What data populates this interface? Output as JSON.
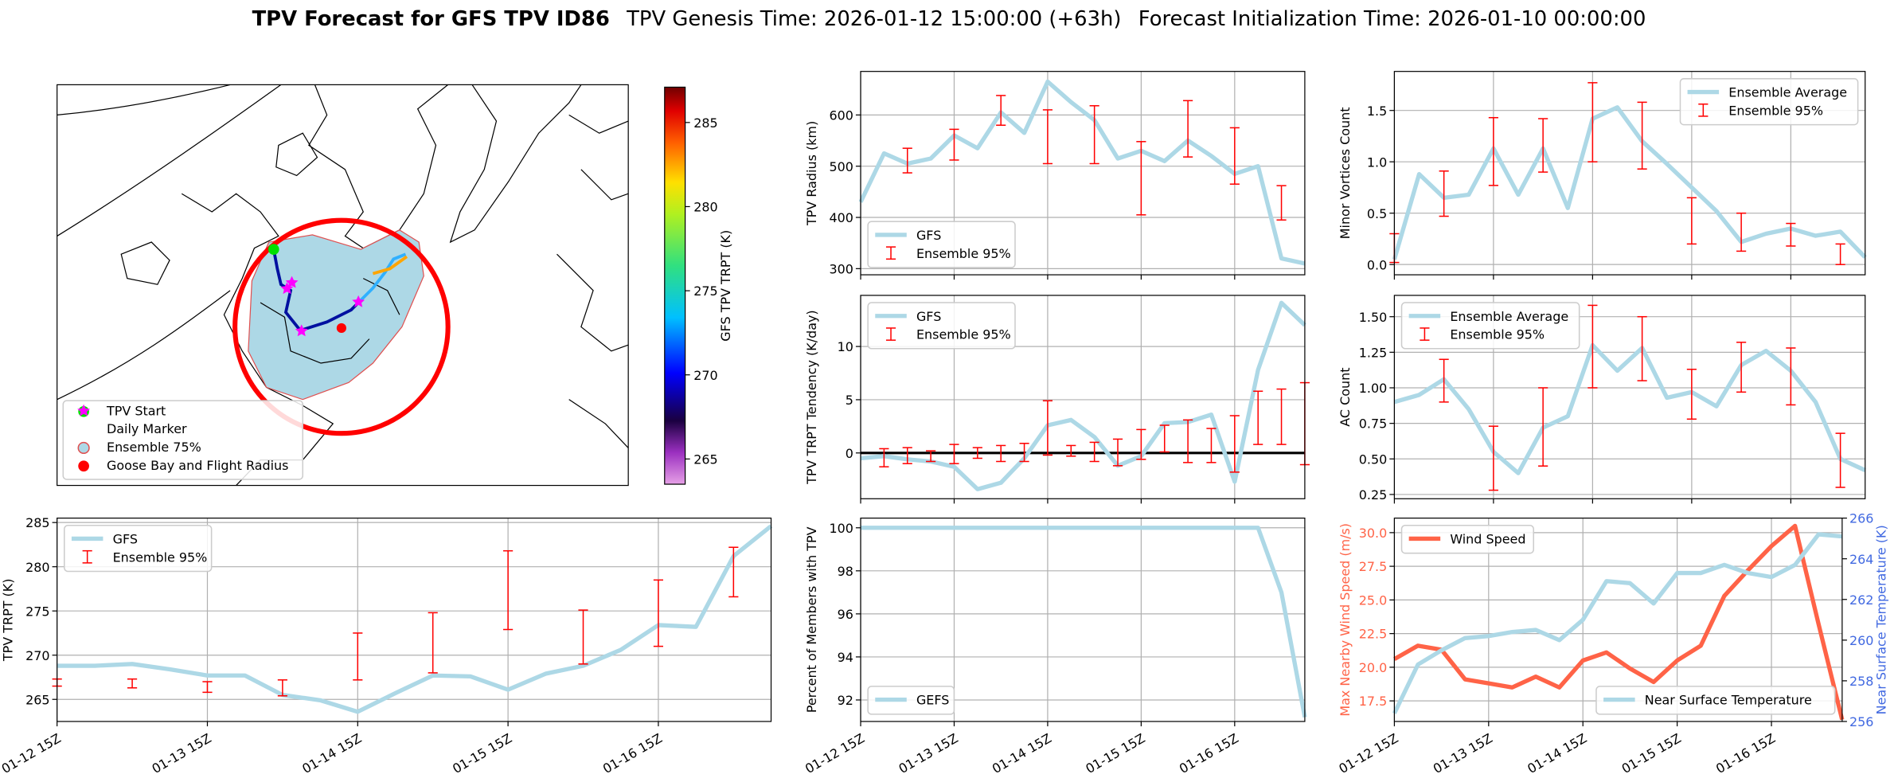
{
  "suptitle": [
    "TPV Forecast for GFS TPV ID86",
    "TPV Genesis Time: 2026-01-12 15:00:00 (+63h)",
    "Forecast Initialization Time: 2026-01-10 00:00:00"
  ],
  "chart_data": [
    {
      "type": "map",
      "legend": [
        "TPV Start",
        "Daily Marker",
        "Ensemble 75%",
        "Goose Bay and Flight Radius"
      ],
      "colorbar": {
        "label": "GFS TPV TRPT (K)",
        "lim": [
          263.5,
          287.1
        ],
        "ticks": [
          265,
          270,
          275,
          280,
          285
        ]
      }
    },
    {
      "type": "line",
      "ylabel": "TPV TRPT (K)",
      "grid": true,
      "legend_loc": "upper left",
      "x": [
        "01-12 15Z",
        "01-12 21Z",
        "01-13 03Z",
        "01-13 09Z",
        "01-13 15Z",
        "01-13 21Z",
        "01-14 03Z",
        "01-14 09Z",
        "01-14 15Z",
        "01-14 21Z",
        "01-15 03Z",
        "01-15 09Z",
        "01-15 15Z",
        "01-15 21Z",
        "01-16 03Z",
        "01-16 09Z",
        "01-16 15Z",
        "01-16 21Z",
        "01-17 03Z",
        "01-17 09Z"
      ],
      "xlim": [
        "01-12 15Z",
        "01-17 09Z"
      ],
      "xticks": [
        "01-12 15Z",
        "01-13 15Z",
        "01-14 15Z",
        "01-15 15Z",
        "01-16 15Z"
      ],
      "ylim": [
        262.5,
        285.5
      ],
      "yticks": [
        265,
        270,
        275,
        280,
        285
      ],
      "series": [
        {
          "name": "GFS",
          "color": "#add8e6",
          "values": [
            268.8,
            268.8,
            269.0,
            268.4,
            267.7,
            267.7,
            265.5,
            264.9,
            263.6,
            265.7,
            267.7,
            267.6,
            266.1,
            267.9,
            268.8,
            270.6,
            273.4,
            273.2,
            281.2,
            284.6
          ]
        }
      ],
      "errorbars": {
        "name": "Ensemble 95%",
        "color": "#ff0000",
        "x": [
          "01-12 15Z",
          "01-13 03Z",
          "01-13 15Z",
          "01-14 03Z",
          "01-14 15Z",
          "01-15 03Z",
          "01-15 15Z",
          "01-16 03Z",
          "01-16 15Z",
          "01-17 03Z"
        ],
        "low": [
          266.5,
          266.3,
          265.8,
          265.4,
          267.2,
          268.0,
          272.9,
          269.0,
          271.0,
          276.6
        ],
        "high": [
          267.3,
          267.3,
          267.0,
          267.2,
          272.5,
          274.8,
          281.8,
          275.1,
          278.5,
          282.2
        ]
      }
    },
    {
      "type": "line",
      "ylabel": "TPV Radius (km)",
      "grid": true,
      "legend_loc": "lower left",
      "x": [
        "01-12 15Z",
        "01-12 21Z",
        "01-13 03Z",
        "01-13 09Z",
        "01-13 15Z",
        "01-13 21Z",
        "01-14 03Z",
        "01-14 09Z",
        "01-14 15Z",
        "01-14 21Z",
        "01-15 03Z",
        "01-15 09Z",
        "01-15 15Z",
        "01-15 21Z",
        "01-16 03Z",
        "01-16 09Z",
        "01-16 15Z",
        "01-16 21Z",
        "01-17 03Z",
        "01-17 09Z"
      ],
      "xlim": [
        "01-12 15Z",
        "01-17 09Z"
      ],
      "ylim": [
        288,
        685
      ],
      "yticks": [
        300,
        400,
        500,
        600
      ],
      "series": [
        {
          "name": "GFS",
          "color": "#add8e6",
          "values": [
            430,
            525,
            505,
            515,
            560,
            535,
            605,
            565,
            665,
            625,
            590,
            515,
            530,
            510,
            550,
            520,
            485,
            500,
            320,
            310
          ]
        }
      ],
      "errorbars": {
        "name": "Ensemble 95%",
        "color": "#ff0000",
        "x": [
          "01-13 03Z",
          "01-13 15Z",
          "01-14 03Z",
          "01-14 15Z",
          "01-15 03Z",
          "01-15 15Z",
          "01-16 03Z",
          "01-16 15Z",
          "01-17 03Z"
        ],
        "low": [
          487,
          512,
          580,
          505,
          505,
          405,
          518,
          465,
          395
        ],
        "high": [
          535,
          572,
          638,
          610,
          618,
          548,
          628,
          575,
          462
        ]
      }
    },
    {
      "type": "line",
      "ylabel": "TPV TRPT Tendency (K/day)",
      "grid": true,
      "legend_loc": "upper left",
      "hline": 0,
      "x": [
        "01-12 15Z",
        "01-12 21Z",
        "01-13 03Z",
        "01-13 09Z",
        "01-13 15Z",
        "01-13 21Z",
        "01-14 03Z",
        "01-14 09Z",
        "01-14 15Z",
        "01-14 21Z",
        "01-15 03Z",
        "01-15 09Z",
        "01-15 15Z",
        "01-15 21Z",
        "01-16 03Z",
        "01-16 09Z",
        "01-16 15Z",
        "01-16 21Z",
        "01-17 03Z",
        "01-17 09Z"
      ],
      "xlim": [
        "01-12 15Z",
        "01-17 09Z"
      ],
      "ylim": [
        -4.3,
        14.8
      ],
      "yticks": [
        0,
        5,
        10
      ],
      "series": [
        {
          "name": "GFS",
          "color": "#add8e6",
          "values": [
            -0.5,
            -0.3,
            -0.6,
            -0.8,
            -1.3,
            -3.4,
            -2.8,
            -0.5,
            2.6,
            3.1,
            1.5,
            -1.2,
            -0.3,
            2.8,
            2.9,
            3.6,
            -2.7,
            7.8,
            14.1,
            12.0
          ]
        }
      ],
      "errorbars": {
        "name": "Ensemble 95%",
        "color": "#ff0000",
        "x": [
          "01-12 21Z",
          "01-13 03Z",
          "01-13 09Z",
          "01-13 15Z",
          "01-13 21Z",
          "01-14 03Z",
          "01-14 09Z",
          "01-14 15Z",
          "01-14 21Z",
          "01-15 03Z",
          "01-15 09Z",
          "01-15 15Z",
          "01-15 21Z",
          "01-16 03Z",
          "01-16 09Z",
          "01-16 15Z",
          "01-16 21Z",
          "01-17 03Z",
          "01-17 09Z"
        ],
        "low": [
          -1.3,
          -1.0,
          -0.8,
          -1.0,
          -0.5,
          -0.8,
          -0.8,
          -0.2,
          -0.3,
          -0.8,
          -1.2,
          -0.6,
          0.1,
          -0.9,
          -0.9,
          -1.8,
          0.8,
          0.8,
          -1.1
        ],
        "high": [
          0.4,
          0.5,
          0.2,
          0.8,
          0.5,
          0.7,
          0.9,
          4.9,
          0.7,
          1.0,
          1.3,
          2.2,
          2.6,
          3.1,
          2.3,
          3.5,
          5.8,
          6.0,
          6.6
        ]
      }
    },
    {
      "type": "line",
      "ylabel": "Percent of Members with TPV",
      "grid": true,
      "legend_loc": "lower left",
      "x": [
        "01-12 15Z",
        "01-12 21Z",
        "01-13 03Z",
        "01-13 09Z",
        "01-13 15Z",
        "01-13 21Z",
        "01-14 03Z",
        "01-14 09Z",
        "01-14 15Z",
        "01-14 21Z",
        "01-15 03Z",
        "01-15 09Z",
        "01-15 15Z",
        "01-15 21Z",
        "01-16 03Z",
        "01-16 09Z",
        "01-16 15Z",
        "01-16 21Z",
        "01-17 03Z",
        "01-17 09Z"
      ],
      "xlim": [
        "01-12 15Z",
        "01-17 09Z"
      ],
      "xticks": [
        "01-12 15Z",
        "01-13 15Z",
        "01-14 15Z",
        "01-15 15Z",
        "01-16 15Z"
      ],
      "ylim": [
        91,
        100.45
      ],
      "yticks": [
        92,
        94,
        96,
        98,
        100
      ],
      "series": [
        {
          "name": "GEFS",
          "color": "#add8e6",
          "values": [
            100,
            100,
            100,
            100,
            100,
            100,
            100,
            100,
            100,
            100,
            100,
            100,
            100,
            100,
            100,
            100,
            100,
            100,
            97,
            91.2
          ]
        }
      ]
    },
    {
      "type": "line",
      "ylabel": "Minor Vortices Count",
      "grid": true,
      "legend_loc": "upper right",
      "x": [
        "01-12 15Z",
        "01-12 21Z",
        "01-13 03Z",
        "01-13 09Z",
        "01-13 15Z",
        "01-13 21Z",
        "01-14 03Z",
        "01-14 09Z",
        "01-14 15Z",
        "01-14 21Z",
        "01-15 03Z",
        "01-15 09Z",
        "01-15 15Z",
        "01-15 21Z",
        "01-16 03Z",
        "01-16 09Z",
        "01-16 15Z",
        "01-16 21Z",
        "01-17 03Z",
        "01-17 09Z"
      ],
      "xlim": [
        "01-12 15Z",
        "01-17 09Z"
      ],
      "ylim": [
        -0.1,
        1.88
      ],
      "yticks": [
        {
          "value": 0,
          "label": "0.0"
        },
        0.5,
        {
          "value": 1,
          "label": "1.0"
        },
        1.5
      ],
      "series": [
        {
          "name": "Ensemble Average",
          "color": "#add8e6",
          "values": [
            0.05,
            0.88,
            0.65,
            0.68,
            1.13,
            0.68,
            1.13,
            0.55,
            1.42,
            1.53,
            1.2,
            0.98,
            0.75,
            0.52,
            0.22,
            0.3,
            0.35,
            0.28,
            0.32,
            0.07
          ]
        }
      ],
      "errorbars": {
        "name": "Ensemble 95%",
        "color": "#ff0000",
        "x": [
          "01-12 15Z",
          "01-13 03Z",
          "01-13 15Z",
          "01-14 03Z",
          "01-14 15Z",
          "01-15 03Z",
          "01-15 15Z",
          "01-16 03Z",
          "01-16 15Z",
          "01-17 03Z"
        ],
        "low": [
          0.02,
          0.47,
          0.77,
          0.9,
          1.0,
          0.93,
          0.2,
          0.13,
          0.18,
          0.0
        ],
        "high": [
          0.3,
          0.91,
          1.43,
          1.42,
          1.77,
          1.58,
          0.65,
          0.5,
          0.4,
          0.2
        ]
      }
    },
    {
      "type": "line",
      "ylabel": "AC Count",
      "grid": true,
      "legend_loc": "upper left",
      "x": [
        "01-12 15Z",
        "01-12 21Z",
        "01-13 03Z",
        "01-13 09Z",
        "01-13 15Z",
        "01-13 21Z",
        "01-14 03Z",
        "01-14 09Z",
        "01-14 15Z",
        "01-14 21Z",
        "01-15 03Z",
        "01-15 09Z",
        "01-15 15Z",
        "01-15 21Z",
        "01-16 03Z",
        "01-16 09Z",
        "01-16 15Z",
        "01-16 21Z",
        "01-17 03Z",
        "01-17 09Z"
      ],
      "xlim": [
        "01-12 15Z",
        "01-17 09Z"
      ],
      "ylim": [
        0.22,
        1.65
      ],
      "yticks": [
        0.25,
        {
          "value": 0.5,
          "label": "0.50"
        },
        0.75,
        {
          "value": 1,
          "label": "1.00"
        },
        1.25,
        {
          "value": 1.5,
          "label": "1.50"
        }
      ],
      "series": [
        {
          "name": "Ensemble Average",
          "color": "#add8e6",
          "values": [
            0.9,
            0.95,
            1.06,
            0.85,
            0.55,
            0.4,
            0.72,
            0.8,
            1.3,
            1.12,
            1.28,
            0.93,
            0.97,
            0.87,
            1.16,
            1.26,
            1.12,
            0.9,
            0.5,
            0.42
          ]
        }
      ],
      "errorbars": {
        "name": "Ensemble 95%",
        "color": "#ff0000",
        "x": [
          "01-13 03Z",
          "01-13 15Z",
          "01-14 03Z",
          "01-14 15Z",
          "01-15 03Z",
          "01-15 15Z",
          "01-16 03Z",
          "01-16 15Z",
          "01-17 03Z"
        ],
        "low": [
          0.9,
          0.28,
          0.45,
          1.0,
          1.05,
          0.78,
          0.97,
          0.88,
          0.3
        ],
        "high": [
          1.2,
          0.73,
          1.0,
          1.58,
          1.5,
          1.13,
          1.32,
          1.28,
          0.68
        ]
      }
    },
    {
      "type": "line",
      "ylabel": "Max Nearby Wind Speed (m/s)",
      "ylabel_color": "#ff6347",
      "y2label": "Near Surface Temperature (K)",
      "y2label_color": "#4169e1",
      "grid": true,
      "x": [
        "01-12 15Z",
        "01-12 21Z",
        "01-13 03Z",
        "01-13 09Z",
        "01-13 15Z",
        "01-13 21Z",
        "01-14 03Z",
        "01-14 09Z",
        "01-14 15Z",
        "01-14 21Z",
        "01-15 03Z",
        "01-15 09Z",
        "01-15 15Z",
        "01-15 21Z",
        "01-16 03Z",
        "01-16 09Z",
        "01-16 15Z",
        "01-16 21Z",
        "01-17 03Z",
        "01-17 09Z"
      ],
      "xlim": [
        "01-12 15Z",
        "01-17 09Z"
      ],
      "xticks": [
        "01-12 15Z",
        "01-13 15Z",
        "01-14 15Z",
        "01-15 15Z",
        "01-16 15Z"
      ],
      "ylim": [
        15.97,
        31.08
      ],
      "yticks": [
        17.5,
        {
          "value": 20,
          "label": "20.0"
        },
        22.5,
        {
          "value": 25,
          "label": "25.0"
        },
        27.5,
        {
          "value": 30,
          "label": "30.0"
        }
      ],
      "y2lim": [
        256,
        266
      ],
      "y2ticks": [
        256,
        258,
        260,
        262,
        264,
        266
      ],
      "series": [
        {
          "name": "Wind Speed",
          "color": "#ff6347",
          "legend_loc": "upper left",
          "values": [
            20.6,
            21.6,
            21.3,
            19.1,
            18.8,
            18.5,
            19.3,
            18.5,
            20.5,
            21.1,
            19.9,
            18.9,
            20.5,
            21.6,
            25.3,
            27.2,
            29.0,
            30.5,
            23.2,
            16.1
          ]
        },
        {
          "name": "Near Surface Temperature",
          "color": "#add8e6",
          "axis": "y2",
          "legend_loc": "lower right",
          "values": [
            256.4,
            258.8,
            259.5,
            260.1,
            260.2,
            260.4,
            260.5,
            260.0,
            261.0,
            262.9,
            262.8,
            261.8,
            263.3,
            263.3,
            263.7,
            263.3,
            263.1,
            263.7,
            265.2,
            265.1
          ]
        }
      ]
    }
  ]
}
